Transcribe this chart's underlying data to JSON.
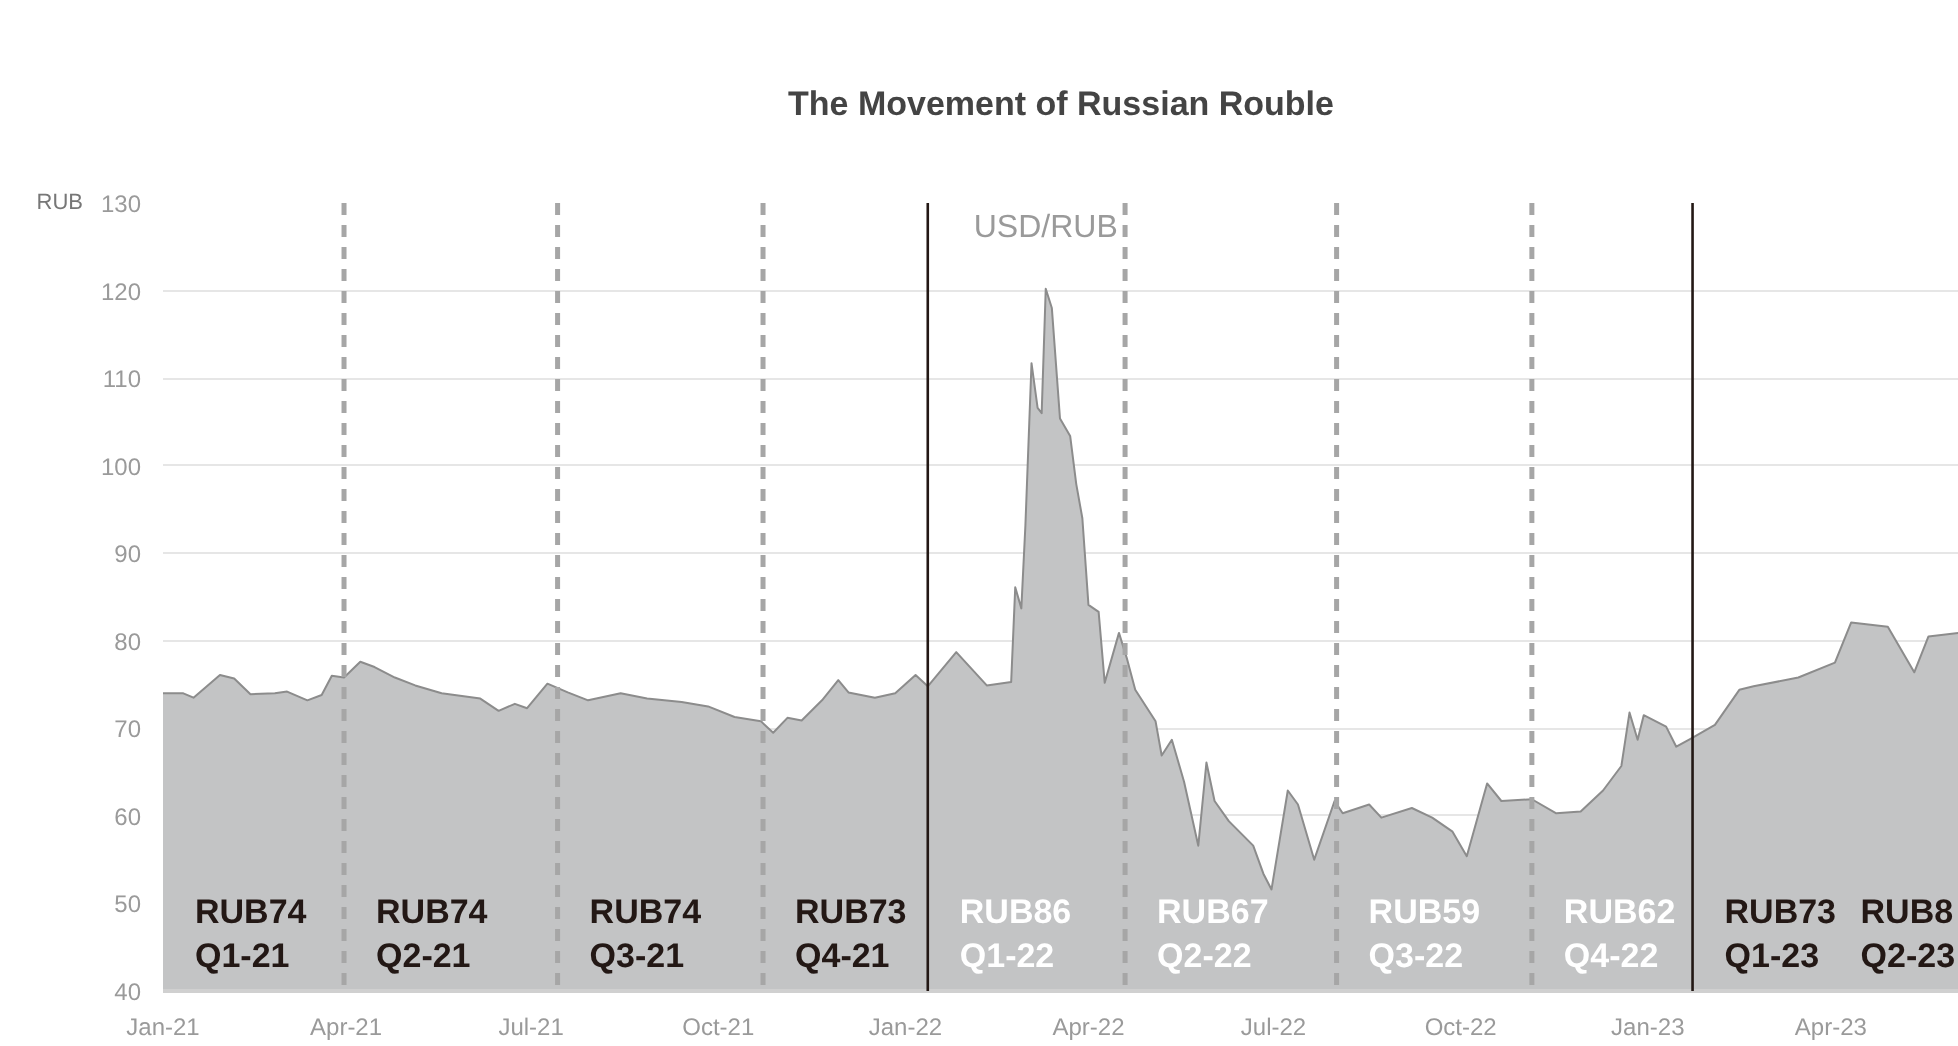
{
  "chart_data": {
    "type": "area",
    "title": "The Movement of Russian Rouble",
    "ylabel": "RUB",
    "series": [
      {
        "name": "USD/RUB",
        "color": "#c3c4c5",
        "x": [
          "2021-01-01",
          "2021-01-11",
          "2021-01-16",
          "2021-01-29",
          "2021-02-05",
          "2021-02-13",
          "2021-02-25",
          "2021-03-03",
          "2021-03-13",
          "2021-03-20",
          "2021-03-25",
          "2021-03-31",
          "2021-04-08",
          "2021-04-15",
          "2021-04-25",
          "2021-05-05",
          "2021-05-18",
          "2021-06-06",
          "2021-06-15",
          "2021-06-23",
          "2021-06-29",
          "2021-07-09",
          "2021-07-19",
          "2021-07-29",
          "2021-08-14",
          "2021-08-27",
          "2021-09-13",
          "2021-09-26",
          "2021-10-09",
          "2021-10-22",
          "2021-10-28",
          "2021-11-04",
          "2021-11-11",
          "2021-11-21",
          "2021-11-29",
          "2021-12-04",
          "2021-12-17",
          "2021-12-27",
          "2022-01-06",
          "2022-01-12",
          "2022-01-26",
          "2022-02-10",
          "2022-02-22",
          "2022-02-24",
          "2022-02-27",
          "2022-03-01",
          "2022-03-04",
          "2022-03-07",
          "2022-03-09",
          "2022-03-11",
          "2022-03-14",
          "2022-03-18",
          "2022-03-23",
          "2022-03-26",
          "2022-03-29",
          "2022-04-01",
          "2022-04-06",
          "2022-04-09",
          "2022-04-16",
          "2022-04-20",
          "2022-04-24",
          "2022-05-04",
          "2022-05-07",
          "2022-05-12",
          "2022-05-18",
          "2022-05-25",
          "2022-05-29",
          "2022-06-02",
          "2022-06-09",
          "2022-06-21",
          "2022-06-26",
          "2022-06-30",
          "2022-07-08",
          "2022-07-13",
          "2022-07-21",
          "2022-07-31",
          "2022-08-04",
          "2022-08-17",
          "2022-08-23",
          "2022-09-07",
          "2022-09-17",
          "2022-09-27",
          "2022-10-04",
          "2022-10-14",
          "2022-10-21",
          "2022-11-05",
          "2022-11-17",
          "2022-11-29",
          "2022-12-10",
          "2022-12-19",
          "2022-12-23",
          "2022-12-27",
          "2022-12-30",
          "2023-01-10",
          "2023-01-15",
          "2023-01-22",
          "2023-02-03",
          "2023-02-15",
          "2023-02-22",
          "2023-03-16",
          "2023-04-03",
          "2023-04-11",
          "2023-04-29",
          "2023-05-12",
          "2023-05-19",
          "2023-06-03"
        ],
        "values": [
          74.0,
          74.0,
          73.5,
          76.1,
          75.7,
          73.9,
          74.0,
          74.2,
          73.2,
          73.8,
          76.0,
          75.8,
          77.6,
          77.0,
          75.8,
          74.9,
          74.0,
          73.4,
          72.0,
          72.8,
          72.3,
          75.1,
          74.1,
          73.2,
          74.0,
          73.4,
          73.0,
          72.5,
          71.3,
          70.8,
          69.5,
          71.2,
          70.9,
          73.2,
          75.5,
          74.1,
          73.5,
          74.0,
          76.1,
          74.8,
          78.7,
          74.9,
          75.3,
          86.1,
          83.7,
          93.2,
          111.7,
          106.6,
          106.0,
          120.2,
          118.0,
          105.4,
          103.4,
          97.9,
          94.0,
          84.1,
          83.3,
          75.2,
          80.9,
          77.9,
          74.4,
          70.8,
          66.9,
          68.7,
          63.9,
          56.6,
          66.1,
          61.7,
          59.4,
          56.6,
          53.4,
          51.6,
          62.9,
          61.3,
          55.0,
          61.7,
          60.3,
          61.3,
          59.8,
          60.9,
          59.8,
          58.2,
          55.4,
          63.7,
          61.7,
          61.9,
          60.3,
          60.5,
          62.9,
          65.7,
          71.8,
          68.7,
          71.5,
          70.2,
          67.9,
          68.8,
          70.4,
          74.4,
          74.8,
          75.8,
          77.5,
          82.1,
          81.6,
          76.4,
          80.5,
          80.9
        ]
      }
    ],
    "xlim": [
      "2021-01-01",
      "2023-06-03"
    ],
    "xticks": [
      {
        "value": "2021-01-01",
        "label": "Jan-21"
      },
      {
        "value": "2021-04-01",
        "label": "Apr-21"
      },
      {
        "value": "2021-07-01",
        "label": "Jul-21"
      },
      {
        "value": "2021-10-01",
        "label": "Oct-21"
      },
      {
        "value": "2022-01-01",
        "label": "Jan-22"
      },
      {
        "value": "2022-04-01",
        "label": "Apr-22"
      },
      {
        "value": "2022-07-01",
        "label": "Jul-22"
      },
      {
        "value": "2022-10-01",
        "label": "Oct-22"
      },
      {
        "value": "2023-01-01",
        "label": "Jan-23"
      },
      {
        "value": "2023-04-01",
        "label": "Apr-23"
      }
    ],
    "ylim": [
      40,
      130
    ],
    "yticks": [
      40,
      50,
      60,
      70,
      80,
      90,
      100,
      110,
      120,
      130
    ],
    "grid": "y",
    "legend": false,
    "ref_lines": [
      {
        "axis": "x",
        "value": "2021-03-31",
        "color": "#a6a6a6",
        "line_style": "dashed"
      },
      {
        "axis": "x",
        "value": "2021-07-14",
        "color": "#a6a6a6",
        "line_style": "dashed"
      },
      {
        "axis": "x",
        "value": "2021-10-23",
        "color": "#a6a6a6",
        "line_style": "dashed"
      },
      {
        "axis": "x",
        "value": "2022-01-12",
        "color": "#231815",
        "line_style": "solid"
      },
      {
        "axis": "x",
        "value": "2022-04-19",
        "color": "#a6a6a6",
        "line_style": "dashed"
      },
      {
        "axis": "x",
        "value": "2022-08-01",
        "color": "#a6a6a6",
        "line_style": "dashed"
      },
      {
        "axis": "x",
        "value": "2022-11-05",
        "color": "#a6a6a6",
        "line_style": "dashed"
      },
      {
        "axis": "x",
        "value": "2023-01-23",
        "color": "#231815",
        "line_style": "solid"
      }
    ],
    "annotations": [
      "RUB74\nQ1-21",
      "RUB74\nQ2-21",
      "RUB74\nQ3-21",
      "RUB73\nQ4-21",
      "RUB86\nQ1-22",
      "RUB67\nQ2-22",
      "RUB59\nQ3-22",
      "RUB62\nQ4-22",
      "RUB73\nQ1-23",
      "RUB8\nQ2-23"
    ]
  }
}
